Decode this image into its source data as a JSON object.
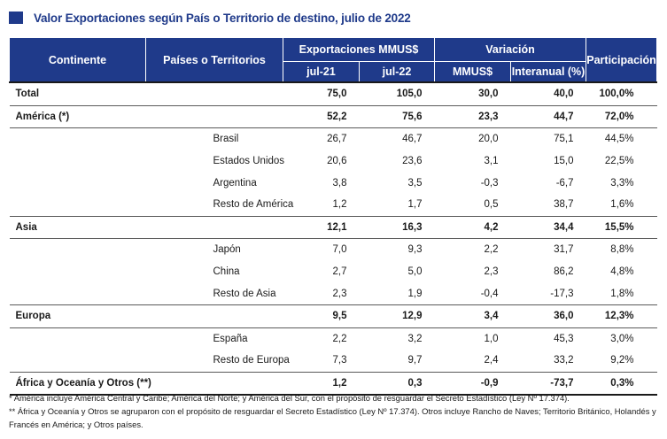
{
  "title": "Valor Exportaciones según País o Territorio de destino, julio de 2022",
  "headers": {
    "continente": "Continente",
    "paises": "Países o Territorios",
    "exportaciones": "Exportaciones MMUS$",
    "variacion": "Variación",
    "participacion": "Participación",
    "jul21": "jul-21",
    "jul22": "jul-22",
    "mmus": "MMUS$",
    "interanual": "Interanual (%)"
  },
  "rows": {
    "total": {
      "label": "Total",
      "jul21": "75,0",
      "jul22": "105,0",
      "mmus": "30,0",
      "inter": "40,0",
      "part": "100,0%"
    },
    "america": {
      "label": "América (*)",
      "jul21": "52,2",
      "jul22": "75,6",
      "mmus": "23,3",
      "inter": "44,7",
      "part": "72,0%"
    },
    "brasil": {
      "label": "Brasil",
      "jul21": "26,7",
      "jul22": "46,7",
      "mmus": "20,0",
      "inter": "75,1",
      "part": "44,5%"
    },
    "eeuu": {
      "label": "Estados Unidos",
      "jul21": "20,6",
      "jul22": "23,6",
      "mmus": "3,1",
      "inter": "15,0",
      "part": "22,5%"
    },
    "argentina": {
      "label": "Argentina",
      "jul21": "3,8",
      "jul22": "3,5",
      "mmus": "-0,3",
      "inter": "-6,7",
      "part": "3,3%"
    },
    "resto_america": {
      "label": "Resto de América",
      "jul21": "1,2",
      "jul22": "1,7",
      "mmus": "0,5",
      "inter": "38,7",
      "part": "1,6%"
    },
    "asia": {
      "label": "Asia",
      "jul21": "12,1",
      "jul22": "16,3",
      "mmus": "4,2",
      "inter": "34,4",
      "part": "15,5%"
    },
    "japon": {
      "label": "Japón",
      "jul21": "7,0",
      "jul22": "9,3",
      "mmus": "2,2",
      "inter": "31,7",
      "part": "8,8%"
    },
    "china": {
      "label": "China",
      "jul21": "2,7",
      "jul22": "5,0",
      "mmus": "2,3",
      "inter": "86,2",
      "part": "4,8%"
    },
    "resto_asia": {
      "label": "Resto de Asia",
      "jul21": "2,3",
      "jul22": "1,9",
      "mmus": "-0,4",
      "inter": "-17,3",
      "part": "1,8%"
    },
    "europa": {
      "label": "Europa",
      "jul21": "9,5",
      "jul22": "12,9",
      "mmus": "3,4",
      "inter": "36,0",
      "part": "12,3%"
    },
    "espana": {
      "label": "España",
      "jul21": "2,2",
      "jul22": "3,2",
      "mmus": "1,0",
      "inter": "45,3",
      "part": "3,0%"
    },
    "resto_europa": {
      "label": "Resto de Europa",
      "jul21": "7,3",
      "jul22": "9,7",
      "mmus": "2,4",
      "inter": "33,2",
      "part": "9,2%"
    },
    "africa": {
      "label": "África y Oceanía y Otros (**)",
      "jul21": "1,2",
      "jul22": "0,3",
      "mmus": "-0,9",
      "inter": "-73,7",
      "part": "0,3%"
    }
  },
  "notes": {
    "n1": "* América incluye América Central y Caribe; América del Norte; y América del Sur, con el propósito de resguardar el Secreto Estadístico (Ley Nº 17.374).",
    "n2": "** África y Oceanía y Otros se agruparon con el propósito de resguardar el Secreto Estadístico (Ley Nº 17.374). Otros incluye Rancho de Naves; Territorio Británico, Holandés y Francés en América; y Otros países."
  },
  "colors": {
    "header": "#1f3a8a"
  }
}
